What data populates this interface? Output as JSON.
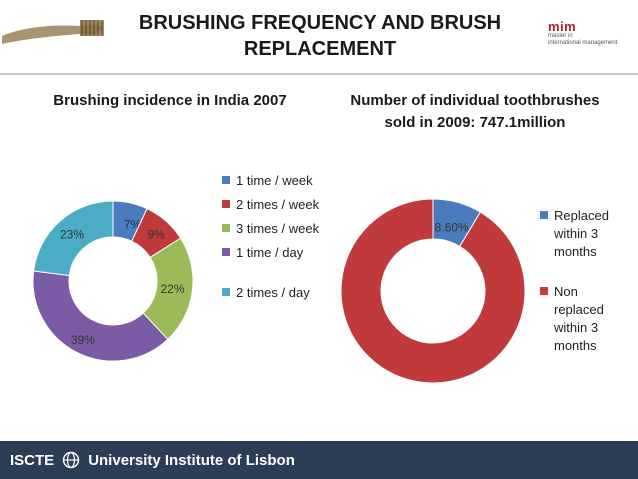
{
  "header": {
    "title": "BRUSHING FREQUENCY AND BRUSH REPLACEMENT",
    "logo_mark": "mim",
    "logo_sub_1": "master in",
    "logo_sub_2": "international management"
  },
  "footer": {
    "brand": "ISCTE",
    "label": "University Institute of Lisbon",
    "background": "#2c3d55"
  },
  "chart_data": [
    {
      "type": "pie",
      "donut": true,
      "title": "Brushing incidence in India 2007",
      "legend_position": "right",
      "slices": [
        {
          "label": "1 time / week",
          "value": 7,
          "display": "7%",
          "color": "#4a7bbf"
        },
        {
          "label": "2 times / week",
          "value": 9,
          "display": "9%",
          "color": "#c0393b"
        },
        {
          "label": "3 times / week",
          "value": 22,
          "display": "22%",
          "color": "#9bbb59"
        },
        {
          "label": "1 time / day",
          "value": 39,
          "display": "39%",
          "color": "#7b5ba5"
        },
        {
          "label": "2 times / day",
          "value": 23,
          "display": "23%",
          "color": "#4aacc5"
        }
      ]
    },
    {
      "type": "pie",
      "donut": true,
      "title": "Number of individual toothbrushes sold in 2009: 747.1million",
      "legend_position": "right",
      "slices": [
        {
          "label": "Replaced within 3 months",
          "value": 8.6,
          "display": "8.60%",
          "color": "#4a7bbf"
        },
        {
          "label": "Non replaced within 3 months",
          "value": 91.4,
          "display": "91.40%",
          "color": "#c0393b"
        }
      ]
    }
  ]
}
